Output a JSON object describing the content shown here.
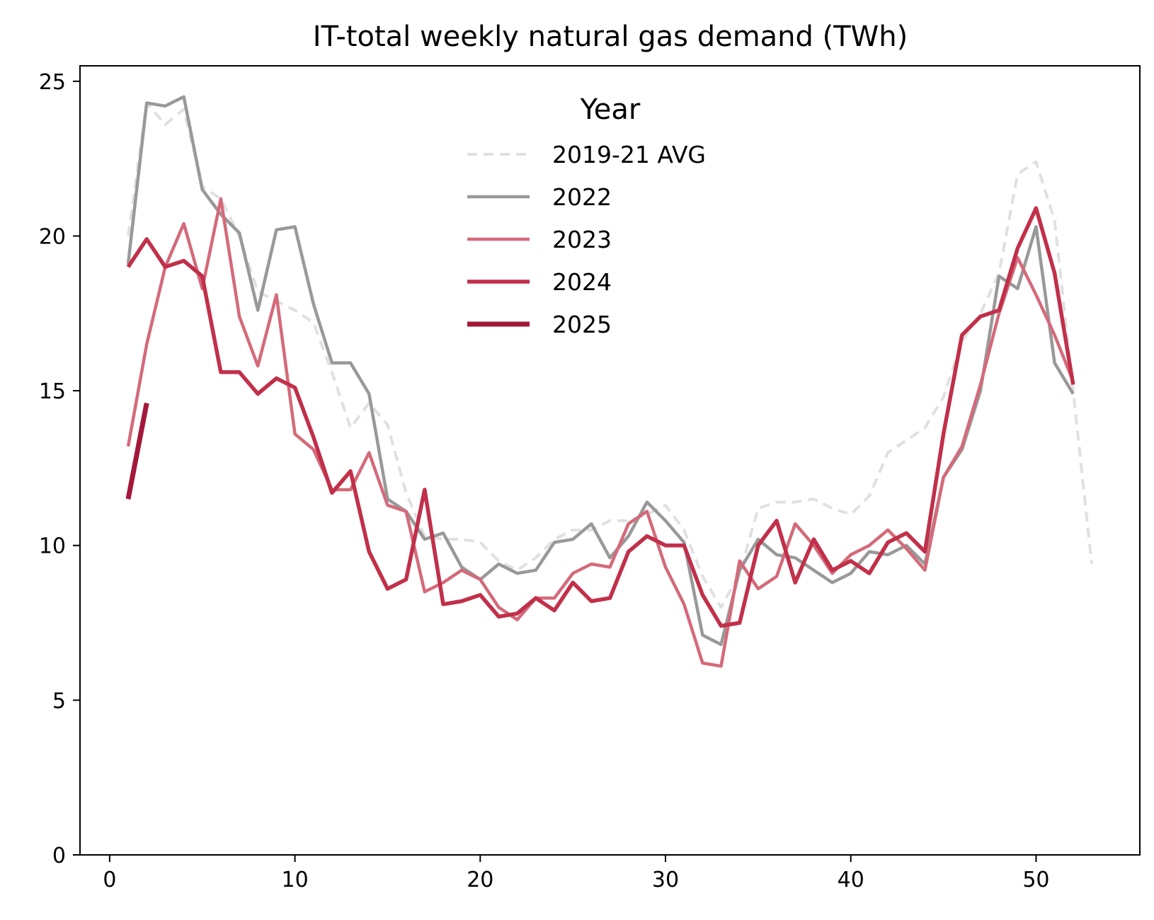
{
  "chart_data": {
    "type": "line",
    "title": "IT-total weekly natural gas demand (TWh)",
    "xlabel": "",
    "ylabel": "",
    "xlim": [
      -1.6,
      55.6
    ],
    "ylim": [
      0,
      25.5
    ],
    "xticks": [
      0,
      10,
      20,
      30,
      40,
      50
    ],
    "yticks": [
      0,
      5,
      10,
      15,
      20,
      25
    ],
    "grid": false,
    "legend": {
      "title": "Year",
      "placement": "upper-center"
    },
    "series": [
      {
        "name": "2019-21 AVG",
        "color": "#e0e0e0",
        "style": "dashed",
        "x": [
          1,
          2,
          3,
          4,
          5,
          6,
          7,
          8,
          9,
          10,
          11,
          12,
          13,
          14,
          15,
          16,
          17,
          18,
          19,
          20,
          21,
          22,
          23,
          24,
          25,
          26,
          27,
          28,
          29,
          30,
          31,
          32,
          33,
          34,
          35,
          36,
          37,
          38,
          39,
          40,
          41,
          42,
          43,
          44,
          45,
          46,
          47,
          48,
          49,
          50,
          51,
          52,
          53
        ],
        "y": [
          20.0,
          24.3,
          23.6,
          24.1,
          21.6,
          21.2,
          20.0,
          18.2,
          17.9,
          17.6,
          17.2,
          15.6,
          13.8,
          14.6,
          13.9,
          11.7,
          10.3,
          10.2,
          10.2,
          10.1,
          9.5,
          9.2,
          9.6,
          10.2,
          10.5,
          10.5,
          10.8,
          10.8,
          11.0,
          11.3,
          10.5,
          9.0,
          8.0,
          9.1,
          11.2,
          11.4,
          11.4,
          11.5,
          11.2,
          11.0,
          11.6,
          13.0,
          13.4,
          13.8,
          14.8,
          16.6,
          17.5,
          18.8,
          22.0,
          22.4,
          20.5,
          15.0,
          9.4
        ]
      },
      {
        "name": "2022",
        "color": "#999999",
        "style": "solid",
        "x": [
          1,
          2,
          3,
          4,
          5,
          6,
          7,
          8,
          9,
          10,
          11,
          12,
          13,
          14,
          15,
          16,
          17,
          18,
          19,
          20,
          21,
          22,
          23,
          24,
          25,
          26,
          27,
          28,
          29,
          30,
          31,
          32,
          33,
          34,
          35,
          36,
          37,
          38,
          39,
          40,
          41,
          42,
          43,
          44,
          45,
          46,
          47,
          48,
          49,
          50,
          51,
          52
        ],
        "y": [
          19.1,
          24.3,
          24.2,
          24.5,
          21.5,
          20.7,
          20.1,
          17.6,
          20.2,
          20.3,
          17.8,
          15.9,
          15.9,
          14.9,
          11.5,
          11.1,
          10.2,
          10.4,
          9.3,
          8.9,
          9.4,
          9.1,
          9.2,
          10.1,
          10.2,
          10.7,
          9.6,
          10.3,
          11.4,
          10.8,
          10.1,
          7.1,
          6.8,
          9.2,
          10.2,
          9.7,
          9.6,
          9.2,
          8.8,
          9.1,
          9.8,
          9.7,
          10.0,
          9.4,
          12.2,
          13.1,
          15.0,
          18.7,
          18.3,
          20.3,
          15.9,
          14.9
        ]
      },
      {
        "name": "2023",
        "color": "#d46a7a",
        "style": "solid",
        "x": [
          1,
          2,
          3,
          4,
          5,
          6,
          7,
          8,
          9,
          10,
          11,
          12,
          13,
          14,
          15,
          16,
          17,
          18,
          19,
          20,
          21,
          22,
          23,
          24,
          25,
          26,
          27,
          28,
          29,
          30,
          31,
          32,
          33,
          34,
          35,
          36,
          37,
          38,
          39,
          40,
          41,
          42,
          43,
          44,
          45,
          46,
          47,
          48,
          49,
          50,
          51,
          52
        ],
        "y": [
          13.2,
          16.5,
          19.0,
          20.4,
          18.3,
          21.2,
          17.4,
          15.8,
          18.1,
          13.6,
          13.1,
          11.8,
          11.8,
          13.0,
          11.3,
          11.1,
          8.5,
          8.8,
          9.2,
          8.9,
          8.0,
          7.6,
          8.3,
          8.3,
          9.1,
          9.4,
          9.3,
          10.7,
          11.1,
          9.3,
          8.1,
          6.2,
          6.1,
          9.5,
          8.6,
          9.0,
          10.7,
          10.0,
          9.1,
          9.7,
          10.0,
          10.5,
          9.9,
          9.2,
          12.2,
          13.2,
          15.2,
          17.5,
          19.3,
          18.1,
          16.8,
          15.3
        ]
      },
      {
        "name": "2024",
        "color": "#c1304a",
        "style": "solid",
        "x": [
          1,
          2,
          3,
          4,
          5,
          6,
          7,
          8,
          9,
          10,
          11,
          12,
          13,
          14,
          15,
          16,
          17,
          18,
          19,
          20,
          21,
          22,
          23,
          24,
          25,
          26,
          27,
          28,
          29,
          30,
          31,
          32,
          33,
          34,
          35,
          36,
          37,
          38,
          39,
          40,
          41,
          42,
          43,
          44,
          45,
          46,
          47,
          48,
          49,
          50,
          51,
          52
        ],
        "y": [
          19.0,
          19.9,
          19.0,
          19.2,
          18.7,
          15.6,
          15.6,
          14.9,
          15.4,
          15.1,
          13.5,
          11.7,
          12.4,
          9.8,
          8.6,
          8.9,
          11.8,
          8.1,
          8.2,
          8.4,
          7.7,
          7.8,
          8.3,
          7.9,
          8.8,
          8.2,
          8.3,
          9.8,
          10.3,
          10.0,
          10.0,
          8.4,
          7.4,
          7.5,
          10.0,
          10.8,
          8.8,
          10.2,
          9.2,
          9.5,
          9.1,
          10.1,
          10.4,
          9.8,
          13.6,
          16.8,
          17.4,
          17.6,
          19.6,
          20.9,
          18.8,
          15.2
        ]
      },
      {
        "name": "2025",
        "color": "#a3183a",
        "style": "solid",
        "x": [
          1,
          2
        ],
        "y": [
          11.5,
          14.6
        ]
      }
    ]
  }
}
